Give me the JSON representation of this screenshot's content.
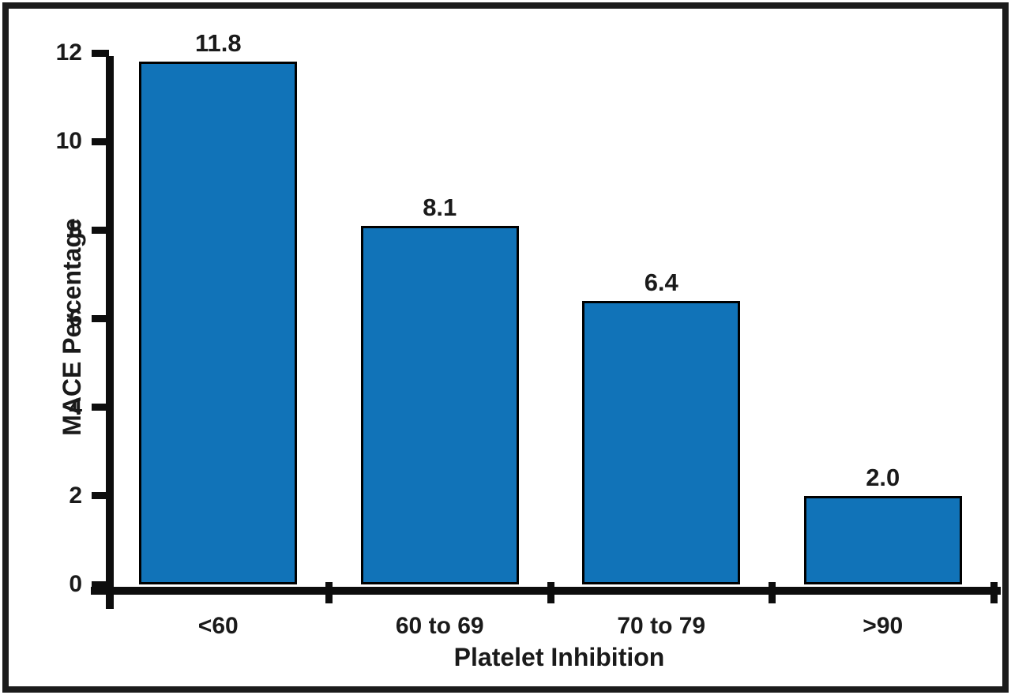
{
  "chart_data": {
    "type": "bar",
    "title": "",
    "categories": [
      "<60",
      "60 to 69",
      "70 to 79",
      ">90"
    ],
    "values": [
      11.8,
      8.1,
      6.4,
      2.0
    ],
    "value_labels": [
      "11.8",
      "8.1",
      "6.4",
      "2.0"
    ],
    "xlabel": "Platelet Inhibition",
    "ylabel": "MACE Percentage",
    "ylim": [
      0,
      12
    ],
    "yticks": [
      0,
      2,
      4,
      6,
      8,
      10,
      12
    ],
    "grid": false,
    "legend": "none",
    "bar_fill_color": "#1173B8",
    "bar_border_color": "#000000",
    "axis_color": "#0D0D0D",
    "text_color": "#1A1A1A",
    "frame_color": "#1B1B1B",
    "background_color": "#FFFFFF"
  }
}
